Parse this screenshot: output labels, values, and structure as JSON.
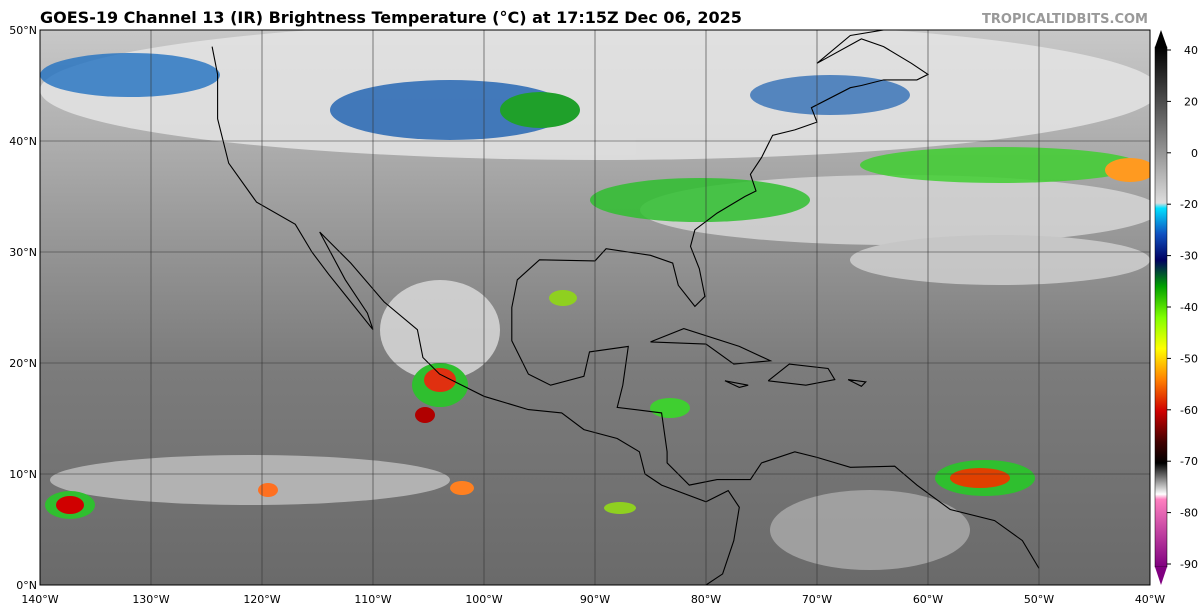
{
  "header": {
    "title": "GOES-19 Channel 13 (IR) Brightness Temperature (°C) at 17:15Z Dec 06, 2025",
    "source": "TROPICALTIDBITS.COM"
  },
  "map": {
    "lon_range": [
      -140,
      -40
    ],
    "lat_range": [
      0,
      50
    ],
    "lat_ticks": [
      {
        "value": 0,
        "label": "0°N"
      },
      {
        "value": 10,
        "label": "10°N"
      },
      {
        "value": 20,
        "label": "20°N"
      },
      {
        "value": 30,
        "label": "30°N"
      },
      {
        "value": 40,
        "label": "40°N"
      },
      {
        "value": 50,
        "label": "50°N"
      }
    ],
    "lon_ticks": [
      {
        "value": -140,
        "label": "140°W"
      },
      {
        "value": -130,
        "label": "130°W"
      },
      {
        "value": -120,
        "label": "120°W"
      },
      {
        "value": -110,
        "label": "110°W"
      },
      {
        "value": -100,
        "label": "100°W"
      },
      {
        "value": -90,
        "label": "90°W"
      },
      {
        "value": -80,
        "label": "80°W"
      },
      {
        "value": -70,
        "label": "70°W"
      },
      {
        "value": -60,
        "label": "60°W"
      },
      {
        "value": -50,
        "label": "50°W"
      },
      {
        "value": -40,
        "label": "40°W"
      }
    ]
  },
  "colorbar": {
    "ticks": [
      40,
      20,
      0,
      -20,
      -30,
      -40,
      -50,
      -60,
      -70,
      -80,
      -90
    ]
  }
}
